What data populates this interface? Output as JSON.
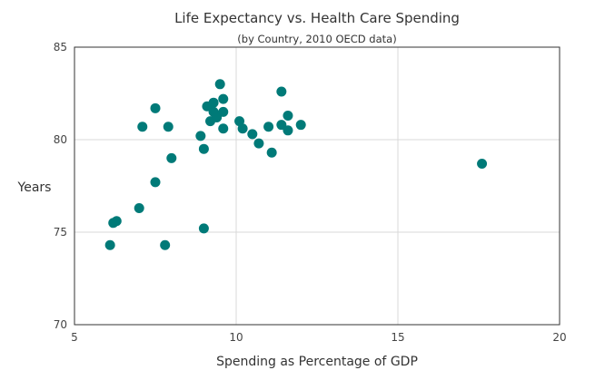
{
  "chart_data": {
    "type": "scatter",
    "title": "Life Expectancy vs. Health Care Spending",
    "subtitle": "(by Country, 2010 OECD data)",
    "xlabel": "Spending as Percentage of GDP",
    "ylabel": "Years",
    "xlim": [
      5,
      20
    ],
    "ylim": [
      70,
      85
    ],
    "xticks": [
      5,
      10,
      15,
      20
    ],
    "yticks": [
      70,
      75,
      80,
      85
    ],
    "xtick_labels": [
      "5",
      "10",
      "15",
      "20"
    ],
    "ytick_labels": [
      "70",
      "75",
      "80",
      "85"
    ],
    "grid": true,
    "legend": "none",
    "marker_color": "#007A78",
    "points": [
      {
        "x": 6.1,
        "y": 74.3
      },
      {
        "x": 6.2,
        "y": 75.5
      },
      {
        "x": 6.3,
        "y": 75.6
      },
      {
        "x": 7.0,
        "y": 76.3
      },
      {
        "x": 7.1,
        "y": 80.7
      },
      {
        "x": 7.5,
        "y": 81.7
      },
      {
        "x": 7.5,
        "y": 77.7
      },
      {
        "x": 7.8,
        "y": 74.3
      },
      {
        "x": 7.9,
        "y": 80.7
      },
      {
        "x": 8.0,
        "y": 79.0
      },
      {
        "x": 8.9,
        "y": 80.2
      },
      {
        "x": 9.0,
        "y": 79.5
      },
      {
        "x": 9.0,
        "y": 75.2
      },
      {
        "x": 9.1,
        "y": 81.8
      },
      {
        "x": 9.2,
        "y": 81.0
      },
      {
        "x": 9.3,
        "y": 82.0
      },
      {
        "x": 9.3,
        "y": 81.5
      },
      {
        "x": 9.4,
        "y": 81.2
      },
      {
        "x": 9.5,
        "y": 83.0
      },
      {
        "x": 9.6,
        "y": 82.2
      },
      {
        "x": 9.6,
        "y": 81.5
      },
      {
        "x": 9.6,
        "y": 80.6
      },
      {
        "x": 10.1,
        "y": 81.0
      },
      {
        "x": 10.2,
        "y": 80.6
      },
      {
        "x": 10.5,
        "y": 80.3
      },
      {
        "x": 10.7,
        "y": 79.8
      },
      {
        "x": 11.0,
        "y": 80.7
      },
      {
        "x": 11.1,
        "y": 79.3
      },
      {
        "x": 11.4,
        "y": 82.6
      },
      {
        "x": 11.4,
        "y": 80.8
      },
      {
        "x": 11.6,
        "y": 81.3
      },
      {
        "x": 11.6,
        "y": 80.5
      },
      {
        "x": 12.0,
        "y": 80.8
      },
      {
        "x": 17.6,
        "y": 78.7
      }
    ]
  }
}
